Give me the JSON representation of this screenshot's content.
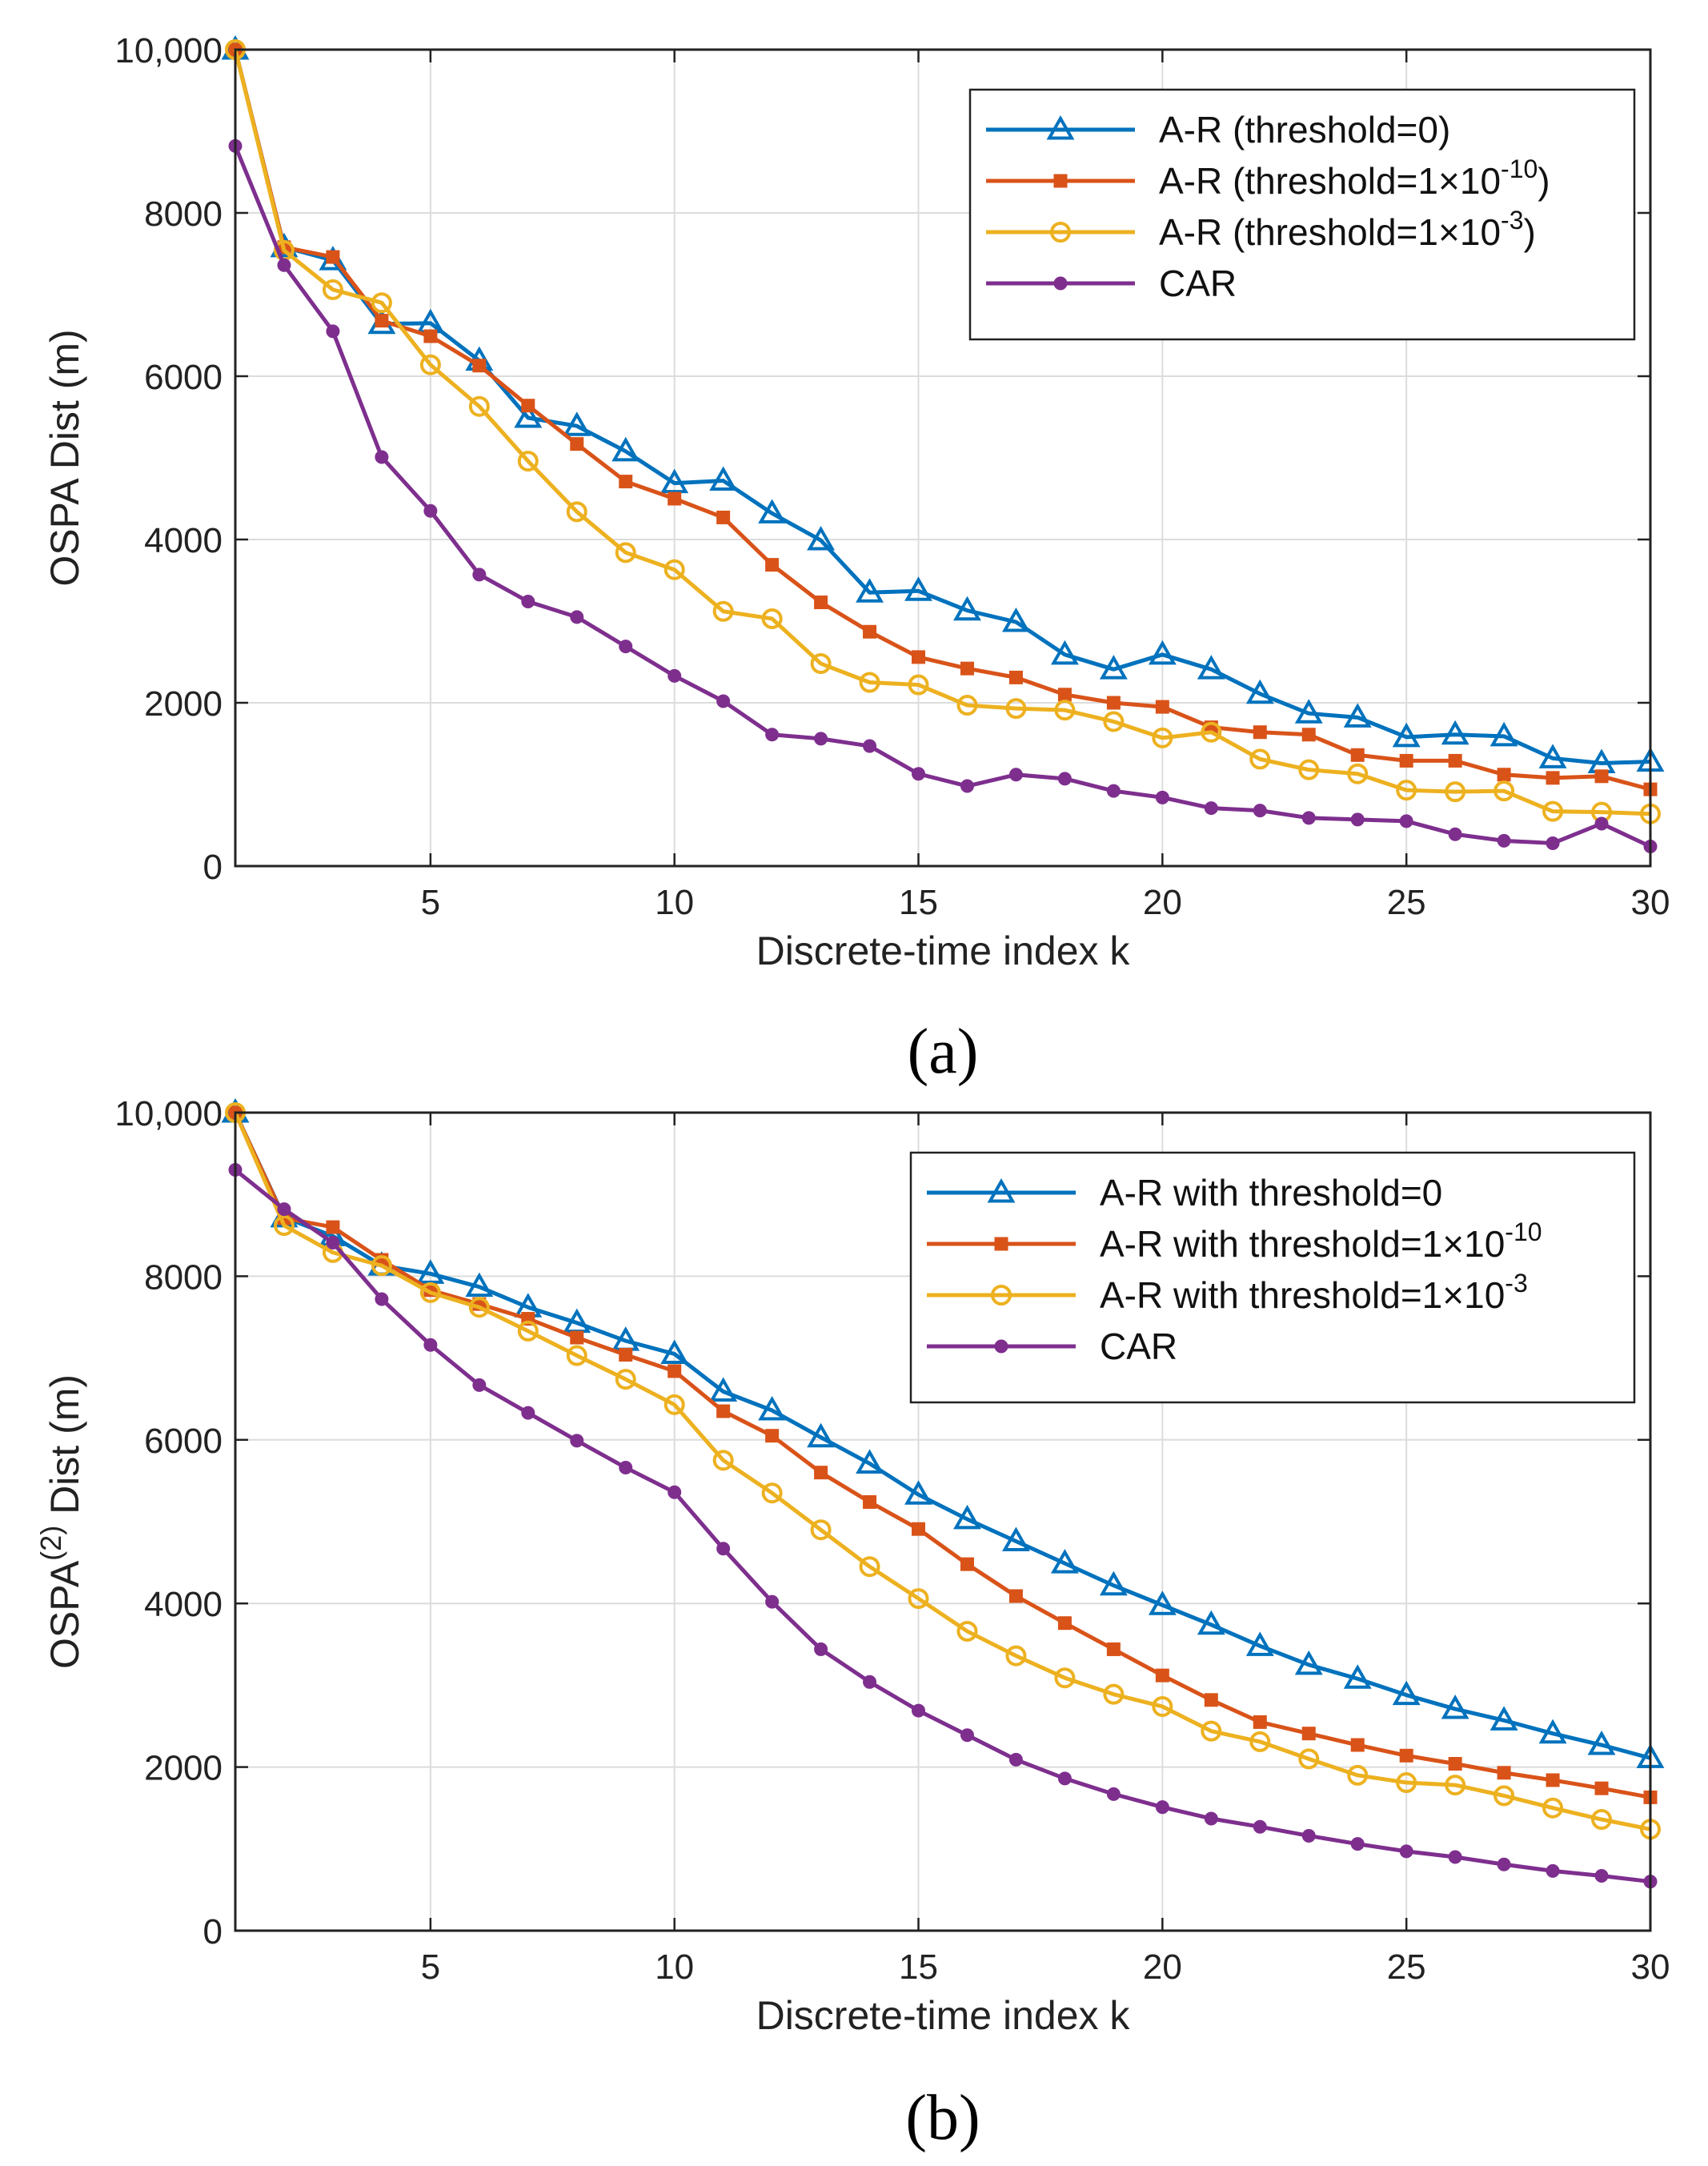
{
  "chart_data": [
    {
      "type": "line",
      "caption": "(a)",
      "xlabel": "Discrete-time index k",
      "ylabel": "OSPA Dist (m)",
      "xlim": [
        1,
        30
      ],
      "ylim": [
        0,
        10000
      ],
      "xticks": [
        5,
        10,
        15,
        20,
        25,
        30
      ],
      "yticks": [
        0,
        2000,
        4000,
        6000,
        8000,
        10000
      ],
      "ytick_labels": [
        "0",
        "2000",
        "4000",
        "6000",
        "8000",
        "10,000"
      ],
      "grid": true,
      "legend_position": "top-right",
      "x": [
        1,
        2,
        3,
        4,
        5,
        6,
        7,
        8,
        9,
        10,
        11,
        12,
        13,
        14,
        15,
        16,
        17,
        18,
        19,
        20,
        21,
        22,
        23,
        24,
        25,
        26,
        27,
        28,
        29,
        30
      ],
      "series": [
        {
          "name": "A-R (threshold=0)",
          "legend_base": "A-R (threshold=0)",
          "legend_sup": "",
          "legend_tail": "",
          "color": "#0072BD",
          "marker": "triangle",
          "values": [
            10000,
            7580,
            7420,
            6640,
            6650,
            6190,
            5490,
            5390,
            5080,
            4690,
            4720,
            4320,
            3990,
            3350,
            3370,
            3130,
            2990,
            2590,
            2410,
            2590,
            2410,
            2110,
            1870,
            1820,
            1580,
            1610,
            1590,
            1320,
            1260,
            1280
          ]
        },
        {
          "name": "A-R (threshold=1×10^-10)",
          "legend_base": "A-R (threshold=1×10",
          "legend_sup": "-10",
          "legend_tail": ")",
          "color": "#D95319",
          "marker": "square",
          "values": [
            10000,
            7580,
            7460,
            6680,
            6490,
            6130,
            5640,
            5170,
            4710,
            4500,
            4270,
            3690,
            3230,
            2870,
            2560,
            2420,
            2310,
            2100,
            2000,
            1950,
            1700,
            1640,
            1610,
            1360,
            1290,
            1290,
            1120,
            1080,
            1100,
            940
          ]
        },
        {
          "name": "A-R (threshold=1×10^-3)",
          "legend_base": "A-R (threshold=1×10",
          "legend_sup": "-3",
          "legend_tail": ")",
          "color": "#EDB120",
          "marker": "circle",
          "values": [
            10000,
            7540,
            7060,
            6900,
            6140,
            5630,
            4960,
            4340,
            3840,
            3630,
            3120,
            3030,
            2480,
            2250,
            2220,
            1970,
            1930,
            1910,
            1770,
            1570,
            1640,
            1310,
            1180,
            1130,
            930,
            910,
            920,
            670,
            660,
            640
          ]
        },
        {
          "name": "CAR",
          "legend_base": "CAR",
          "legend_sup": "",
          "legend_tail": "",
          "color": "#7E2F8E",
          "marker": "dot",
          "values": [
            8820,
            7360,
            6550,
            5010,
            4350,
            3570,
            3240,
            3050,
            2690,
            2330,
            2020,
            1610,
            1560,
            1470,
            1130,
            980,
            1120,
            1070,
            920,
            840,
            710,
            680,
            590,
            570,
            550,
            390,
            310,
            280,
            520,
            240
          ]
        }
      ]
    },
    {
      "type": "line",
      "caption": "(b)",
      "xlabel": "Discrete-time index k",
      "ylabel_pre": "OSPA",
      "ylabel_sup": "(2)",
      "ylabel_post": " Dist (m)",
      "xlim": [
        1,
        30
      ],
      "ylim": [
        0,
        10000
      ],
      "xticks": [
        5,
        10,
        15,
        20,
        25,
        30
      ],
      "yticks": [
        0,
        2000,
        4000,
        6000,
        8000,
        10000
      ],
      "ytick_labels": [
        "0",
        "2000",
        "4000",
        "6000",
        "8000",
        "10,000"
      ],
      "grid": true,
      "legend_position": "top-right",
      "x": [
        1,
        2,
        3,
        4,
        5,
        6,
        7,
        8,
        9,
        10,
        11,
        12,
        13,
        14,
        15,
        16,
        17,
        18,
        19,
        20,
        21,
        22,
        23,
        24,
        25,
        26,
        27,
        28,
        29,
        30
      ],
      "series": [
        {
          "name": "A-R with threshold=0",
          "legend_base": "A-R with threshold=0",
          "legend_sup": "",
          "legend_tail": "",
          "color": "#0072BD",
          "marker": "triangle",
          "values": [
            10000,
            8720,
            8490,
            8130,
            8030,
            7870,
            7620,
            7430,
            7210,
            7050,
            6590,
            6360,
            6030,
            5710,
            5330,
            5030,
            4760,
            4490,
            4220,
            3980,
            3740,
            3480,
            3250,
            3080,
            2880,
            2710,
            2570,
            2410,
            2270,
            2110
          ]
        },
        {
          "name": "A-R with threshold=1×10^-10",
          "legend_base": "A-R with threshold=1×10",
          "legend_sup": "-10",
          "legend_tail": "",
          "color": "#D95319",
          "marker": "square",
          "values": [
            10000,
            8710,
            8600,
            8200,
            7830,
            7660,
            7480,
            7250,
            7040,
            6840,
            6350,
            6050,
            5600,
            5240,
            4910,
            4480,
            4090,
            3760,
            3440,
            3120,
            2820,
            2550,
            2410,
            2270,
            2140,
            2040,
            1930,
            1840,
            1740,
            1630
          ]
        },
        {
          "name": "A-R with threshold=1×10^-3",
          "legend_base": "A-R with threshold=1×10",
          "legend_sup": "-3",
          "legend_tail": "",
          "color": "#EDB120",
          "marker": "circle",
          "values": [
            10000,
            8620,
            8290,
            8130,
            7800,
            7620,
            7330,
            7030,
            6740,
            6430,
            5750,
            5350,
            4900,
            4450,
            4060,
            3660,
            3360,
            3090,
            2890,
            2740,
            2440,
            2310,
            2100,
            1900,
            1810,
            1780,
            1650,
            1500,
            1360,
            1240
          ]
        },
        {
          "name": "CAR",
          "legend_base": "CAR",
          "legend_sup": "",
          "legend_tail": "",
          "color": "#7E2F8E",
          "marker": "dot",
          "values": [
            9300,
            8820,
            8410,
            7720,
            7160,
            6670,
            6330,
            5990,
            5660,
            5360,
            4670,
            4020,
            3440,
            3040,
            2690,
            2390,
            2090,
            1860,
            1670,
            1510,
            1370,
            1270,
            1160,
            1060,
            970,
            900,
            810,
            730,
            670,
            600
          ]
        }
      ]
    }
  ]
}
